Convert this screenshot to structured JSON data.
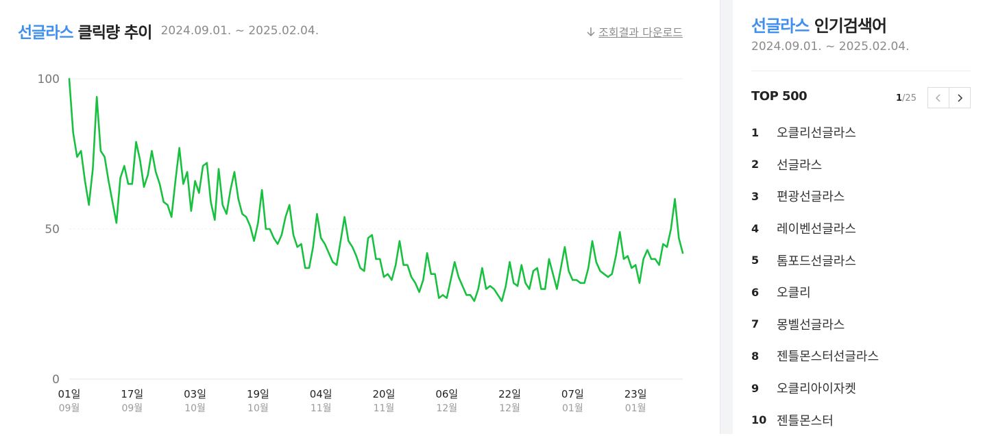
{
  "chart_panel": {
    "keyword": "선글라스",
    "title_suffix": "클릭량 추이",
    "period": "2024.09.01. ~ 2025.02.04.",
    "download_label": "조회결과 다운로드"
  },
  "chart_data": {
    "type": "line",
    "ylim": [
      0,
      100
    ],
    "yticks": [
      0,
      50,
      100
    ],
    "grid": true,
    "line_color": "#17c03f",
    "x_ticks": [
      {
        "day": "01일",
        "month": "09월",
        "index": 0
      },
      {
        "day": "17일",
        "month": "09월",
        "index": 16
      },
      {
        "day": "03일",
        "month": "10월",
        "index": 32
      },
      {
        "day": "19일",
        "month": "10월",
        "index": 48
      },
      {
        "day": "04일",
        "month": "11월",
        "index": 64
      },
      {
        "day": "20일",
        "month": "11월",
        "index": 80
      },
      {
        "day": "06일",
        "month": "12월",
        "index": 96
      },
      {
        "day": "22일",
        "month": "12월",
        "index": 112
      },
      {
        "day": "07일",
        "month": "01월",
        "index": 128
      },
      {
        "day": "23일",
        "month": "01월",
        "index": 144
      }
    ],
    "series": [
      {
        "values": [
          100,
          82,
          74,
          76,
          66,
          58,
          70,
          94,
          76,
          74,
          66,
          59,
          52,
          67,
          71,
          65,
          65,
          79,
          73,
          64,
          68,
          76,
          69,
          65,
          59,
          58,
          54,
          66,
          77,
          65,
          69,
          56,
          66,
          62,
          71,
          72,
          59,
          53,
          70,
          58,
          55,
          63,
          69,
          60,
          55,
          54,
          51,
          46,
          52,
          63,
          50,
          50,
          47,
          45,
          48,
          54,
          58,
          48,
          44,
          45,
          37,
          37,
          44,
          55,
          47,
          45,
          42,
          39,
          38,
          46,
          54,
          46,
          44,
          41,
          37,
          36,
          47,
          48,
          40,
          40,
          34,
          35,
          33,
          38,
          46,
          38,
          38,
          34,
          32,
          29,
          33,
          42,
          35,
          35,
          27,
          28,
          27,
          33,
          39,
          34,
          31,
          28,
          28,
          26,
          30,
          37,
          30,
          31,
          30,
          28,
          26,
          31,
          39,
          32,
          31,
          38,
          32,
          30,
          36,
          37,
          30,
          30,
          40,
          35,
          30,
          37,
          44,
          36,
          33,
          33,
          32,
          32,
          37,
          46,
          39,
          36,
          35,
          34,
          35,
          41,
          49,
          40,
          41,
          37,
          38,
          32,
          40,
          43,
          40,
          40,
          38,
          45,
          44,
          50,
          60,
          47,
          42
        ]
      }
    ]
  },
  "rank_panel": {
    "keyword": "선글라스",
    "title_suffix": "인기검색어",
    "period": "2024.09.01. ~ 2025.02.04.",
    "top_label": "TOP 500",
    "page_current": "1",
    "page_total": "/25",
    "items": [
      {
        "rank": "1",
        "word": "오클리선글라스"
      },
      {
        "rank": "2",
        "word": "선글라스"
      },
      {
        "rank": "3",
        "word": "편광선글라스"
      },
      {
        "rank": "4",
        "word": "레이벤선글라스"
      },
      {
        "rank": "5",
        "word": "톰포드선글라스"
      },
      {
        "rank": "6",
        "word": "오클리"
      },
      {
        "rank": "7",
        "word": "몽벨선글라스"
      },
      {
        "rank": "8",
        "word": "젠틀몬스터선글라스"
      },
      {
        "rank": "9",
        "word": "오클리아이자켓"
      },
      {
        "rank": "10",
        "word": "젠틀몬스터"
      }
    ]
  }
}
